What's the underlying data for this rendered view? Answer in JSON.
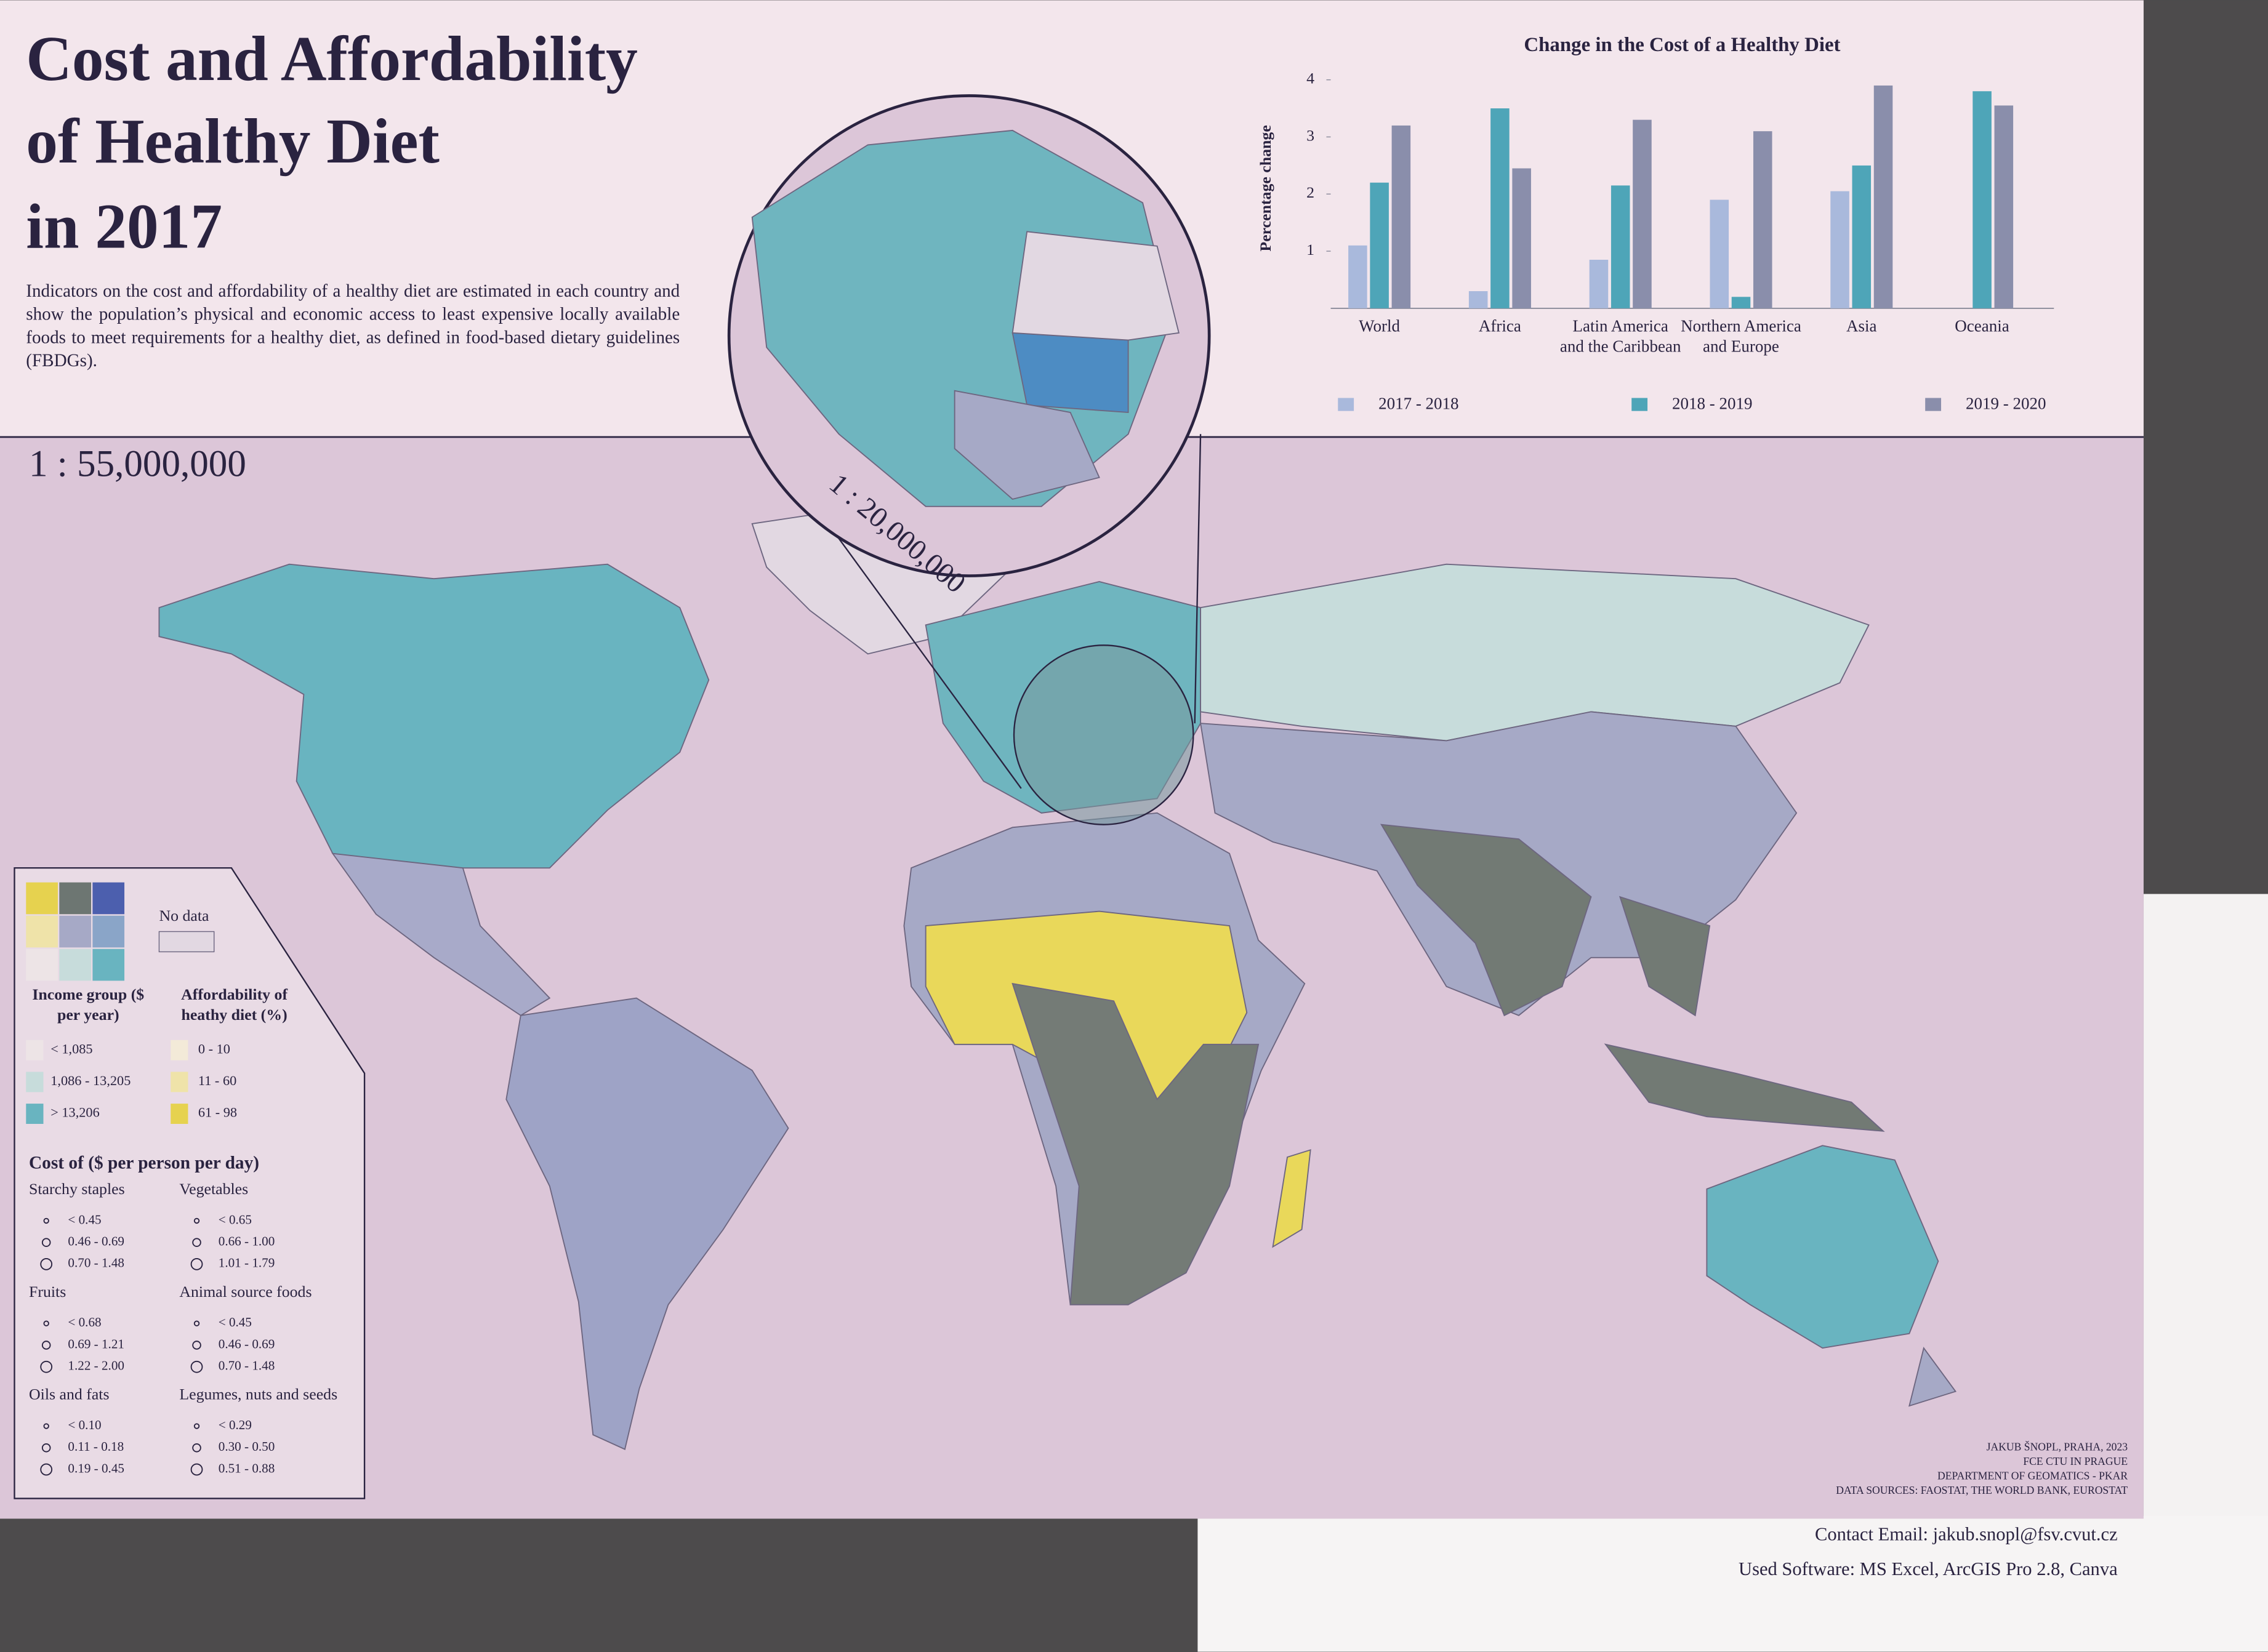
{
  "header": {
    "title_lines": [
      "Cost and Affordability",
      "of Healthy Diet",
      "in 2017"
    ],
    "description": "Indicators on the cost and affordability of a healthy diet are estimated in each country and show the population’s physical and economic access to least expensive locally available foods to meet requirements for a healthy diet, as defined in food-based dietary guidelines (FBDGs)."
  },
  "map": {
    "scale": "1 : 55,000,000",
    "inset_scale": "1 : 20,000,000"
  },
  "chart_data": {
    "type": "bar",
    "title": "Change in the Cost of a Healthy Diet",
    "y_label": "Percentage change",
    "categories": [
      "World",
      "Africa",
      "Latin America and the Caribbean",
      "Northern America and Europe",
      "Asia",
      "Oceania"
    ],
    "series": [
      {
        "name": "2017 - 2018",
        "color": "#a9b9dc",
        "values": [
          1.1,
          0.3,
          0.85,
          1.9,
          2.05,
          0
        ]
      },
      {
        "name": "2018 - 2019",
        "color": "#4ea5b8",
        "values": [
          2.2,
          3.5,
          2.15,
          0.2,
          2.5,
          3.8
        ]
      },
      {
        "name": "2019 - 2020",
        "color": "#8a8eab",
        "values": [
          3.2,
          2.45,
          3.3,
          3.1,
          3.9,
          3.55
        ]
      }
    ],
    "ylim": [
      0,
      4
    ],
    "yticks": [
      1,
      2,
      3,
      4
    ],
    "legend": "bottom"
  },
  "legend": {
    "no_data": "No data",
    "income_title": "Income group ($ per year)",
    "income_items": [
      "< 1,085",
      "1,086 - 13,205",
      "> 13,206"
    ],
    "afford_title": "Affordability of heathy diet (%)",
    "afford_items": [
      "0 - 10",
      "11 - 60",
      "61 - 98"
    ],
    "cost_title": "Cost of ($ per person per day)",
    "groups": [
      {
        "title": "Starchy staples",
        "items": [
          "< 0.45",
          "0.46 - 0.69",
          "0.70 - 1.48"
        ]
      },
      {
        "title": "Vegetables",
        "items": [
          "< 0.65",
          "0.66 - 1.00",
          "1.01 - 1.79"
        ]
      },
      {
        "title": "Fruits",
        "items": [
          "< 0.68",
          "0.69 - 1.21",
          "1.22 - 2.00"
        ]
      },
      {
        "title": "Animal source foods",
        "items": [
          "< 0.45",
          "0.46 - 0.69",
          "0.70 - 1.48"
        ]
      },
      {
        "title": "Oils and fats",
        "items": [
          "< 0.10",
          "0.11 - 0.18",
          "0.19 - 0.45"
        ]
      },
      {
        "title": "Legumes, nuts and seeds",
        "items": [
          "< 0.29",
          "0.30 - 0.50",
          "0.51 - 0.88"
        ]
      }
    ]
  },
  "credits": [
    "JAKUB ŠNOPL, PRAHA, 2023",
    "FCE CTU IN PRAGUE",
    "DEPARTMENT OF GEOMATICS - PKAR",
    "DATA SOURCES: FAOSTAT, THE WORLD BANK, EUROSTAT"
  ],
  "note": [
    "Contact Email: jakub.snopl@fsv.cvut.cz",
    "Used Software: MS Excel, ArcGIS Pro 2.8, Canva"
  ]
}
